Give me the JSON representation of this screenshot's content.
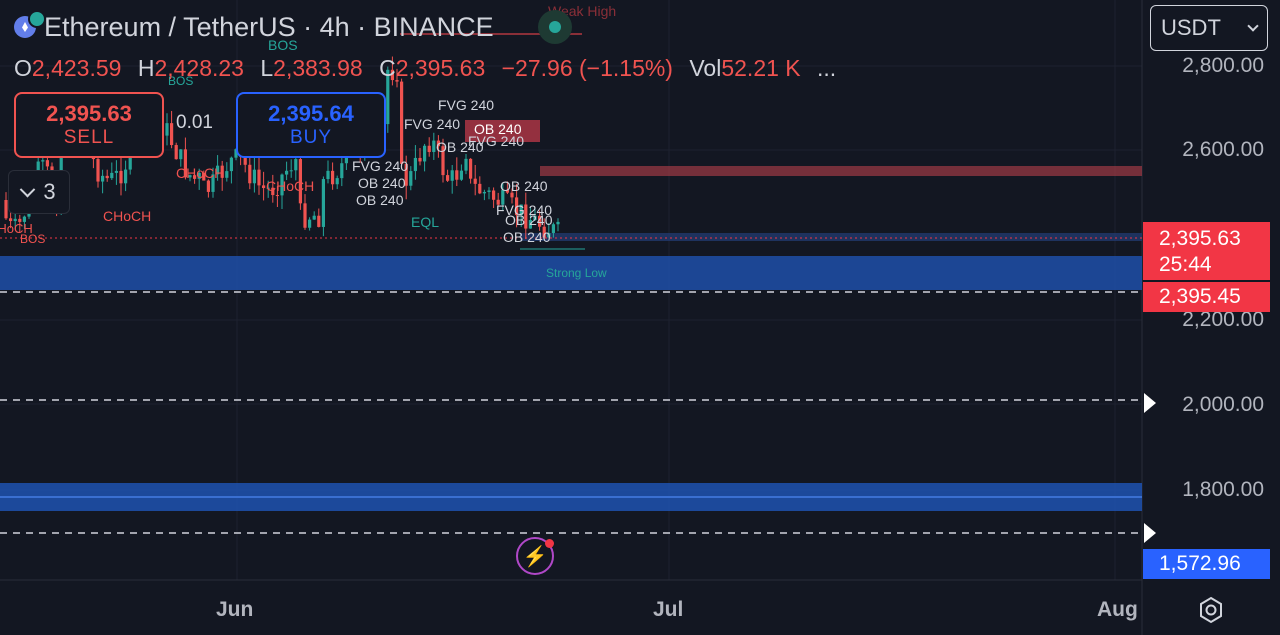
{
  "header": {
    "title": "Ethereum / TetherUS · 4h · BINANCE",
    "ohlc": {
      "o_key": "O",
      "o_val": "2,423.59",
      "h_key": "H",
      "h_val": "2,428.23",
      "l_key": "L",
      "l_val": "2,383.98",
      "c_key": "C",
      "c_val": "2,395.63",
      "change": "−27.96 (−1.15%)",
      "vol_key": "Vol",
      "vol_val": "52.21 K",
      "more": "..."
    }
  },
  "trade": {
    "sell_price": "2,395.63",
    "sell_label": "SELL",
    "quantity": "0.01",
    "buy_price": "2,395.64",
    "buy_label": "BUY"
  },
  "indicator_toggle": {
    "count": "3"
  },
  "currency_select": {
    "value": "USDT"
  },
  "price_axis": {
    "labels": [
      "2,800.00",
      "2,600.00",
      "2,200.00",
      "2,000.00",
      "1,800.00"
    ],
    "current_price": "2,395.63",
    "countdown": "25:44",
    "line_price": "2,395.45",
    "low_price": "1,572.96"
  },
  "time_axis": {
    "labels": [
      "Jun",
      "Jul",
      "Aug"
    ]
  },
  "annotations": {
    "weak_high": "Weak High",
    "strong_low": "Strong Low",
    "eql": "EQL",
    "bos": "BOS",
    "choch": "CHoCH",
    "fvg": "FVG 240",
    "ob": "OB 240"
  },
  "colors": {
    "up": "#26a69a",
    "down": "#f05350",
    "accent_blue": "#2962ff",
    "zone_blue": "#1e4fa8"
  }
}
